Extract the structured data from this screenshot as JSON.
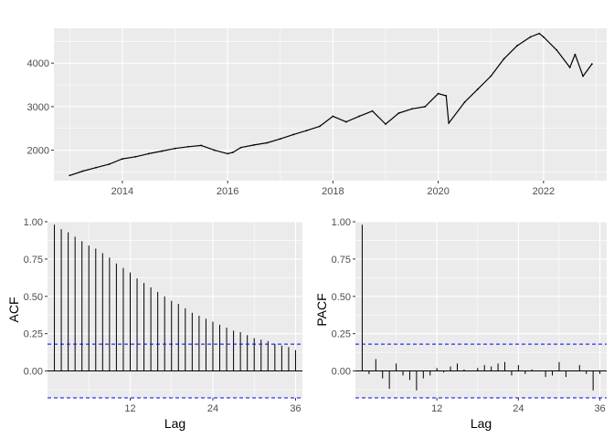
{
  "colors": {
    "panel_background": "#EBEBEB",
    "grid_major": "#FFFFFF",
    "series_line": "#000000",
    "confidence_line": "#0000FF",
    "tick_text": "#4D4D4D"
  },
  "chart_data": [
    {
      "type": "line",
      "title": "",
      "xlabel": "",
      "ylabel": "",
      "xlim": [
        2012.7,
        2023.2
      ],
      "ylim": [
        1300,
        4800
      ],
      "x_ticks": [
        2014,
        2016,
        2018,
        2020,
        2022
      ],
      "x_tick_labels": [
        "2014",
        "2016",
        "2018",
        "2020",
        "2022"
      ],
      "y_ticks": [
        2000,
        3000,
        4000
      ],
      "y_tick_labels": [
        "2000",
        "3000",
        "4000"
      ],
      "grid": true,
      "series": [
        {
          "x": [
            2013.0,
            2013.25,
            2013.5,
            2013.75,
            2014.0,
            2014.25,
            2014.5,
            2014.75,
            2015.0,
            2015.25,
            2015.5,
            2015.75,
            2016.0,
            2016.1,
            2016.25,
            2016.5,
            2016.75,
            2017.0,
            2017.25,
            2017.5,
            2017.75,
            2018.0,
            2018.25,
            2018.5,
            2018.75,
            2019.0,
            2019.25,
            2019.5,
            2019.75,
            2020.0,
            2020.15,
            2020.2,
            2020.5,
            2020.75,
            2021.0,
            2021.25,
            2021.5,
            2021.75,
            2021.92,
            2022.0,
            2022.25,
            2022.5,
            2022.6,
            2022.75,
            2022.92
          ],
          "y": [
            1420,
            1520,
            1600,
            1680,
            1800,
            1850,
            1920,
            1980,
            2040,
            2080,
            2110,
            2000,
            1920,
            1950,
            2060,
            2120,
            2170,
            2260,
            2360,
            2450,
            2550,
            2780,
            2650,
            2780,
            2900,
            2600,
            2850,
            2950,
            3000,
            3300,
            3250,
            2620,
            3100,
            3400,
            3700,
            4100,
            4400,
            4600,
            4680,
            4600,
            4300,
            3900,
            4200,
            3700,
            3980
          ]
        }
      ]
    },
    {
      "type": "bar",
      "title": "",
      "xlabel": "Lag",
      "ylabel": "ACF",
      "xlim": [
        0,
        37
      ],
      "ylim": [
        -0.18,
        1.0
      ],
      "x_ticks": [
        12,
        24,
        36
      ],
      "x_tick_labels": [
        "12",
        "24",
        "36"
      ],
      "y_ticks": [
        0.0,
        0.25,
        0.5,
        0.75,
        1.0
      ],
      "y_tick_labels": [
        "0.00",
        "0.25",
        "0.50",
        "0.75",
        "1.00"
      ],
      "grid": true,
      "confidence_bound": 0.18,
      "lags": [
        1,
        2,
        3,
        4,
        5,
        6,
        7,
        8,
        9,
        10,
        11,
        12,
        13,
        14,
        15,
        16,
        17,
        18,
        19,
        20,
        21,
        22,
        23,
        24,
        25,
        26,
        27,
        28,
        29,
        30,
        31,
        32,
        33,
        34,
        35,
        36
      ],
      "values": [
        0.98,
        0.95,
        0.93,
        0.9,
        0.87,
        0.84,
        0.82,
        0.79,
        0.76,
        0.72,
        0.69,
        0.66,
        0.62,
        0.59,
        0.56,
        0.53,
        0.5,
        0.47,
        0.45,
        0.42,
        0.39,
        0.37,
        0.35,
        0.33,
        0.31,
        0.29,
        0.27,
        0.26,
        0.24,
        0.22,
        0.21,
        0.2,
        0.18,
        0.17,
        0.16,
        0.14
      ]
    },
    {
      "type": "bar",
      "title": "",
      "xlabel": "Lag",
      "ylabel": "PACF",
      "xlim": [
        0,
        37
      ],
      "ylim": [
        -0.18,
        1.0
      ],
      "x_ticks": [
        12,
        24,
        36
      ],
      "x_tick_labels": [
        "12",
        "24",
        "36"
      ],
      "y_ticks": [
        0.0,
        0.25,
        0.5,
        0.75,
        1.0
      ],
      "y_tick_labels": [
        "0.00",
        "0.25",
        "0.50",
        "0.75",
        "1.00"
      ],
      "grid": true,
      "confidence_bound": 0.18,
      "lags": [
        1,
        2,
        3,
        4,
        5,
        6,
        7,
        8,
        9,
        10,
        11,
        12,
        13,
        14,
        15,
        16,
        17,
        18,
        19,
        20,
        21,
        22,
        23,
        24,
        25,
        26,
        27,
        28,
        29,
        30,
        31,
        32,
        33,
        34,
        35,
        36
      ],
      "values": [
        0.98,
        -0.02,
        0.08,
        -0.05,
        -0.12,
        0.05,
        -0.03,
        -0.06,
        -0.13,
        -0.05,
        -0.03,
        0.02,
        -0.01,
        0.03,
        0.05,
        0.01,
        0.0,
        0.02,
        0.04,
        0.03,
        0.05,
        0.06,
        -0.03,
        0.04,
        -0.02,
        0.01,
        0.0,
        -0.04,
        -0.03,
        0.06,
        -0.04,
        0.0,
        0.04,
        -0.02,
        -0.13,
        -0.02
      ]
    }
  ]
}
